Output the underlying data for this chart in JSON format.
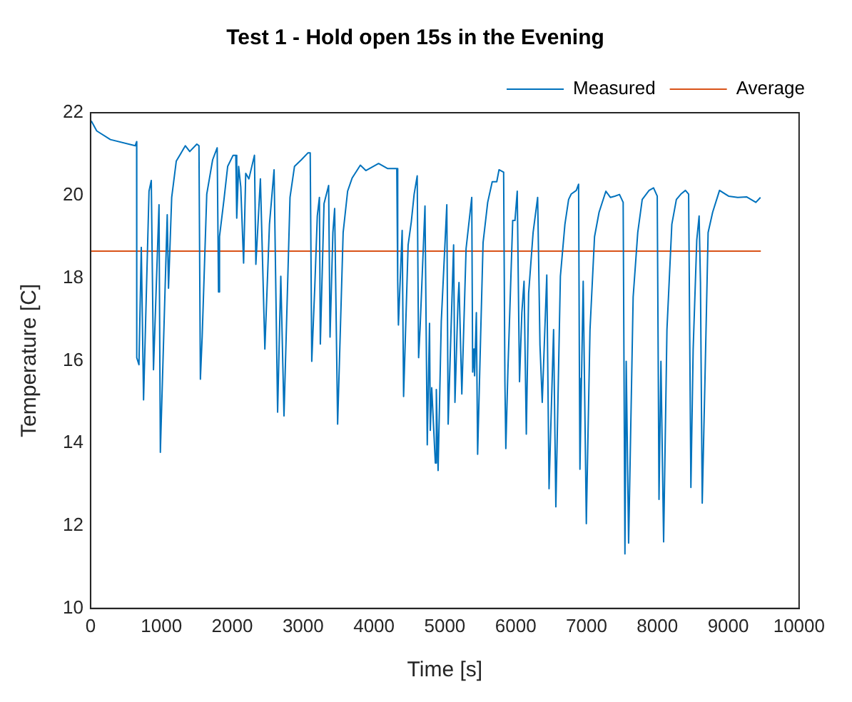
{
  "chart_data": {
    "type": "line",
    "title": "Test 1 - Hold open 15s in the Evening",
    "xlabel": "Time [s]",
    "ylabel": "Temperature [C]",
    "xlim": [
      0,
      10000
    ],
    "xticks": [
      0,
      1000,
      2000,
      3000,
      4000,
      5000,
      6000,
      7000,
      8000,
      9000,
      10000
    ],
    "ylim": [
      10,
      22
    ],
    "yticks": [
      10,
      12,
      14,
      16,
      18,
      20,
      22
    ],
    "legend": "top right",
    "series": [
      {
        "name": "Measured",
        "color": "#0072bd",
        "x": [
          10,
          87,
          280,
          630,
          650,
          652,
          683,
          716,
          748,
          825,
          857,
          888,
          966,
          985,
          1082,
          1100,
          1145,
          1210,
          1338,
          1400,
          1500,
          1530,
          1550,
          1575,
          1640,
          1723,
          1787,
          1806,
          1820,
          1883,
          1935,
          2012,
          2050,
          2063,
          2090,
          2120,
          2160,
          2190,
          2235,
          2313,
          2333,
          2397,
          2460,
          2525,
          2590,
          2640,
          2685,
          2730,
          2815,
          2878,
          2975,
          3070,
          3100,
          3122,
          3165,
          3200,
          3230,
          3243,
          3295,
          3360,
          3380,
          3420,
          3445,
          3487,
          3565,
          3628,
          3692,
          3808,
          3885,
          4065,
          4190,
          4322,
          4335,
          4345,
          4398,
          4418,
          4482,
          4527,
          4567,
          4610,
          4630,
          4650,
          4720,
          4752,
          4784,
          4795,
          4815,
          4866,
          4880,
          4905,
          4950,
          5028,
          5047,
          5124,
          5143,
          5185,
          5200,
          5240,
          5300,
          5380,
          5393,
          5410,
          5420,
          5445,
          5463,
          5505,
          5540,
          5605,
          5669,
          5733,
          5765,
          5830,
          5848,
          5861,
          5890,
          5958,
          5990,
          6022,
          6054,
          6087,
          6118,
          6150,
          6183,
          6246,
          6310,
          6343,
          6375,
          6439,
          6471,
          6535,
          6567,
          6631,
          6695,
          6747,
          6784,
          6856,
          6888,
          6900,
          6907,
          6953,
          6997,
          7049,
          7113,
          7177,
          7273,
          7336,
          7400,
          7465,
          7517,
          7542,
          7560,
          7594,
          7658,
          7723,
          7786,
          7883,
          7946,
          7998,
          8023,
          8050,
          8088,
          8135,
          8204,
          8268,
          8332,
          8396,
          8441,
          8473,
          8505,
          8556,
          8589,
          8608,
          8633,
          8672,
          8716,
          8780,
          8877,
          9005,
          9134,
          9262,
          9390,
          9455
        ],
        "values": [
          21.8,
          21.56,
          21.35,
          21.2,
          21.3,
          16.07,
          15.9,
          18.74,
          15.05,
          20.1,
          20.36,
          15.78,
          19.77,
          13.78,
          19.53,
          17.75,
          19.95,
          20.83,
          21.2,
          21.06,
          21.24,
          21.2,
          15.55,
          16.57,
          20.03,
          20.86,
          21.15,
          17.66,
          19.0,
          19.9,
          20.7,
          20.97,
          20.97,
          19.45,
          20.7,
          20.2,
          18.36,
          20.53,
          20.4,
          20.97,
          18.33,
          20.4,
          16.28,
          19.3,
          20.62,
          14.75,
          18.04,
          14.66,
          19.95,
          20.7,
          20.86,
          21.03,
          21.03,
          15.98,
          17.8,
          19.5,
          19.95,
          16.4,
          19.8,
          20.24,
          16.57,
          19.1,
          19.68,
          14.46,
          19.1,
          20.1,
          20.42,
          20.73,
          20.6,
          20.77,
          20.65,
          20.65,
          17.92,
          16.86,
          19.15,
          15.13,
          18.8,
          19.36,
          20.03,
          20.47,
          16.07,
          16.75,
          19.74,
          13.96,
          16.9,
          14.31,
          15.34,
          13.52,
          15.3,
          13.34,
          16.95,
          19.77,
          14.46,
          18.8,
          14.99,
          17.39,
          17.89,
          15.19,
          18.71,
          19.95,
          15.72,
          16.28,
          15.63,
          17.16,
          13.73,
          16.57,
          18.86,
          19.83,
          20.33,
          20.33,
          20.62,
          20.56,
          15.49,
          13.87,
          15.75,
          19.39,
          19.39,
          20.1,
          15.49,
          17.16,
          17.92,
          14.22,
          17.63,
          19.1,
          19.95,
          16.37,
          14.99,
          18.07,
          12.9,
          16.75,
          12.46,
          18.04,
          19.3,
          19.9,
          20.03,
          20.12,
          20.27,
          15.57,
          13.37,
          17.92,
          12.05,
          16.75,
          19.0,
          19.59,
          20.1,
          19.95,
          19.98,
          20.02,
          19.83,
          11.32,
          15.98,
          11.58,
          17.54,
          19.1,
          19.9,
          20.12,
          20.18,
          19.98,
          12.64,
          15.98,
          11.61,
          16.75,
          19.3,
          19.9,
          20.03,
          20.12,
          20.03,
          12.93,
          16.28,
          18.92,
          19.5,
          17.9,
          12.55,
          15.57,
          19.1,
          19.59,
          20.12,
          19.98,
          19.95,
          19.96,
          19.83,
          19.95
        ]
      },
      {
        "name": "Average",
        "color": "#d95319",
        "x": [
          0,
          9460
        ],
        "values": [
          18.65,
          18.65
        ]
      }
    ]
  }
}
